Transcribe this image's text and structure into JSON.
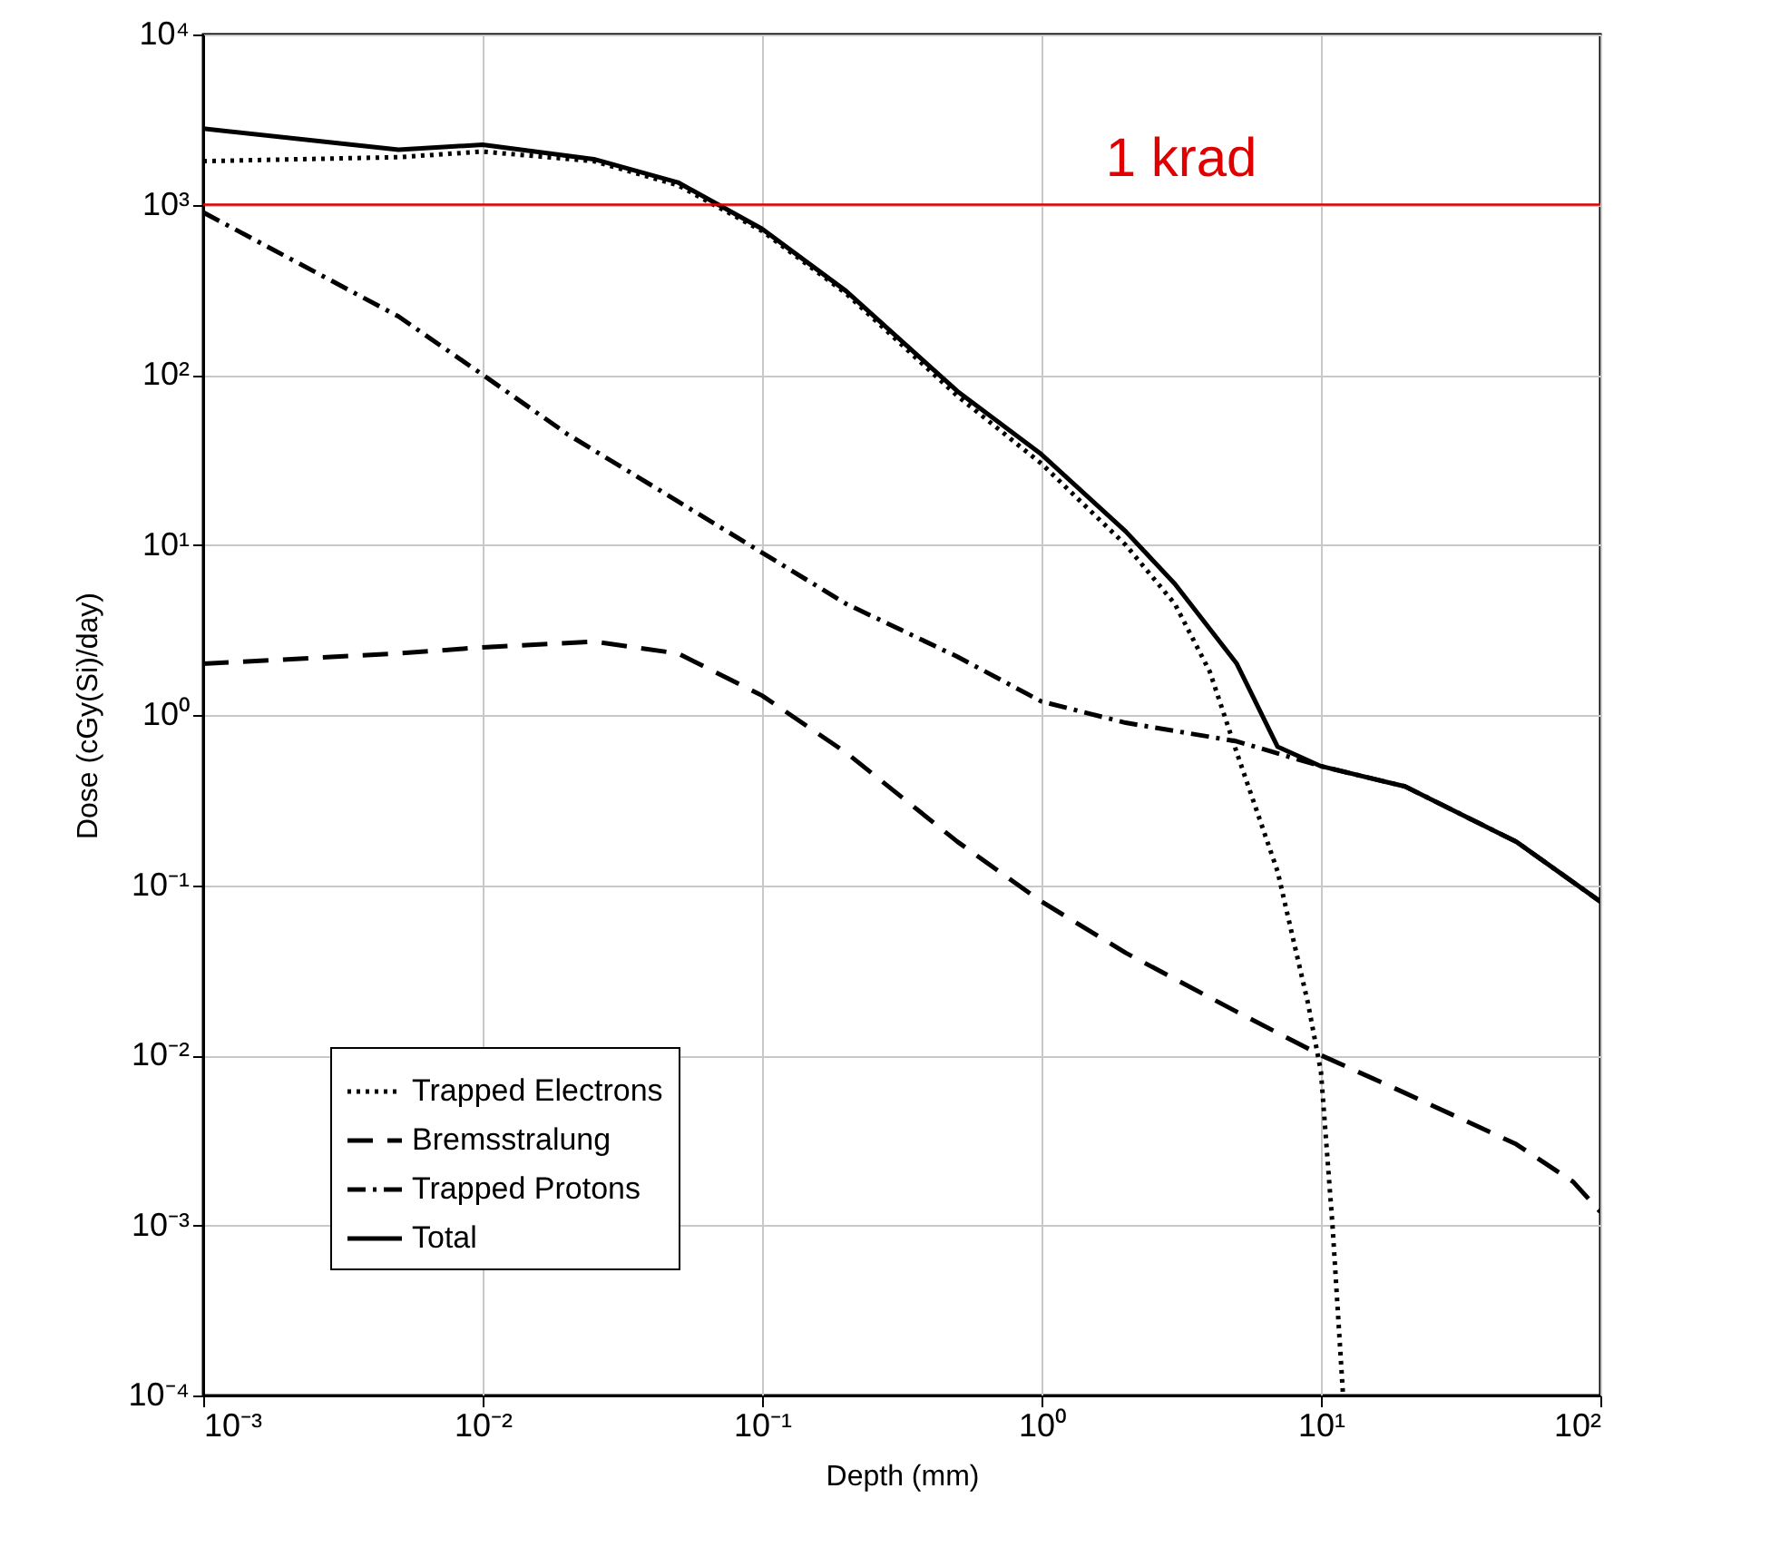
{
  "chart_data": {
    "type": "line",
    "xlabel": "Depth (mm)",
    "ylabel": "Dose (cGy(Si)/day)",
    "log": "xy",
    "grid": true,
    "legend": "bottom left",
    "xlim": [
      0.001,
      100
    ],
    "ylim": [
      0.0001,
      10000
    ],
    "xticks": [
      {
        "value": 0.001,
        "label": "10⁻³"
      },
      {
        "value": 0.01,
        "label": "10⁻²"
      },
      {
        "value": 0.1,
        "label": "10⁻¹"
      },
      {
        "value": 1,
        "label": "10⁰"
      },
      {
        "value": 10,
        "label": "10¹"
      },
      {
        "value": 100,
        "label": "10²"
      }
    ],
    "yticks": [
      {
        "value": 0.0001,
        "label": "10⁻⁴"
      },
      {
        "value": 0.001,
        "label": "10⁻³"
      },
      {
        "value": 0.01,
        "label": "10⁻²"
      },
      {
        "value": 0.1,
        "label": "10⁻¹"
      },
      {
        "value": 1,
        "label": "10⁰"
      },
      {
        "value": 10,
        "label": "10¹"
      },
      {
        "value": 100,
        "label": "10²"
      },
      {
        "value": 1000,
        "label": "10³"
      },
      {
        "value": 10000,
        "label": "10⁴"
      }
    ],
    "ref_lines": [
      {
        "axis": "y",
        "value": 1000,
        "label": "1 krad",
        "color": "#e00000"
      }
    ],
    "series": [
      {
        "name": "Trapped Electrons",
        "color": "#000000",
        "line_style": "dotted",
        "x": [
          0.001,
          0.005,
          0.01,
          0.025,
          0.05,
          0.1,
          0.2,
          0.5,
          1,
          2,
          3,
          4,
          5,
          7,
          9,
          10,
          11,
          12
        ],
        "values": [
          1800,
          1900,
          2050,
          1800,
          1300,
          700,
          300,
          75,
          30,
          10,
          4.5,
          1.8,
          0.6,
          0.12,
          0.02,
          0.008,
          0.001,
          0.0001
        ]
      },
      {
        "name": "Bremsstralung",
        "color": "#000000",
        "line_style": "dashed",
        "x": [
          0.001,
          0.005,
          0.01,
          0.025,
          0.05,
          0.1,
          0.2,
          0.5,
          1,
          2,
          5,
          10,
          20,
          50,
          80,
          100
        ],
        "values": [
          2.0,
          2.3,
          2.5,
          2.7,
          2.3,
          1.3,
          0.6,
          0.18,
          0.08,
          0.04,
          0.018,
          0.01,
          0.006,
          0.003,
          0.0018,
          0.0012
        ]
      },
      {
        "name": "Trapped Protons",
        "color": "#000000",
        "line_style": "dashdot",
        "x": [
          0.001,
          0.005,
          0.01,
          0.02,
          0.05,
          0.1,
          0.2,
          0.5,
          1,
          2,
          5,
          10,
          20,
          50,
          100
        ],
        "values": [
          900,
          220,
          100,
          45,
          18,
          9,
          4.5,
          2.2,
          1.2,
          0.9,
          0.7,
          0.5,
          0.38,
          0.18,
          0.08
        ]
      },
      {
        "name": "Total",
        "color": "#000000",
        "line_style": "solid",
        "x": [
          0.001,
          0.005,
          0.01,
          0.025,
          0.05,
          0.1,
          0.2,
          0.5,
          1,
          2,
          3,
          5,
          7,
          10,
          20,
          50,
          100
        ],
        "values": [
          2800,
          2100,
          2250,
          1850,
          1350,
          720,
          310,
          80,
          34,
          12,
          5.9,
          2.0,
          0.65,
          0.5,
          0.38,
          0.18,
          0.08
        ]
      }
    ]
  }
}
